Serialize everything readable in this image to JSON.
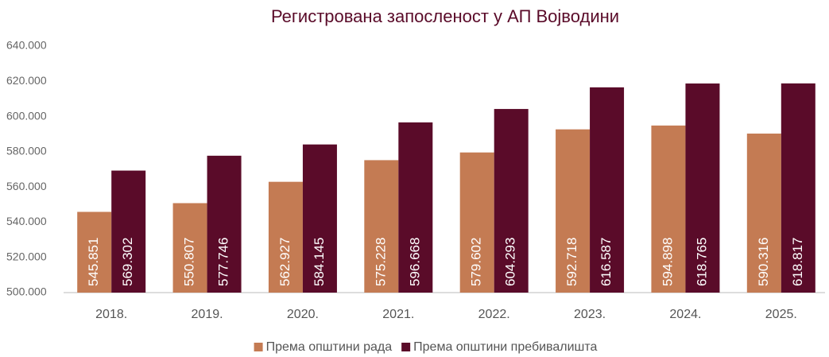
{
  "chart_data": {
    "type": "bar",
    "title": "Регистрована запосленост у АП Војводини",
    "categories": [
      "2018.",
      "2019.",
      "2020.",
      "2021.",
      "2022.",
      "2023.",
      "2024.",
      "2025."
    ],
    "series": [
      {
        "name": "Према општини рада",
        "color": "#c47b53",
        "values": [
          545851,
          550807,
          562927,
          575228,
          579602,
          592718,
          594898,
          590316
        ],
        "value_labels": [
          "545.851",
          "550.807",
          "562.927",
          "575.228",
          "579.602",
          "592.718",
          "594.898",
          "590.316"
        ]
      },
      {
        "name": "Према општини пребивалишта",
        "color": "#5a0b29",
        "values": [
          569302,
          577746,
          584145,
          596668,
          604293,
          616587,
          618765,
          618817
        ],
        "value_labels": [
          "569.302",
          "577.746",
          "584.145",
          "596.668",
          "604.293",
          "616.587",
          "618.765",
          "618.817"
        ]
      }
    ],
    "ylim": [
      500000,
      640000
    ],
    "yticks": [
      {
        "value": 500000,
        "label": "500.000"
      },
      {
        "value": 520000,
        "label": "520.000"
      },
      {
        "value": 540000,
        "label": "540.000"
      },
      {
        "value": 560000,
        "label": "560.000"
      },
      {
        "value": 580000,
        "label": "580.000"
      },
      {
        "value": 600000,
        "label": "600.000"
      },
      {
        "value": 620000,
        "label": "620.000"
      },
      {
        "value": 640000,
        "label": "640.000"
      }
    ],
    "grid": false,
    "legend": "bottom"
  }
}
